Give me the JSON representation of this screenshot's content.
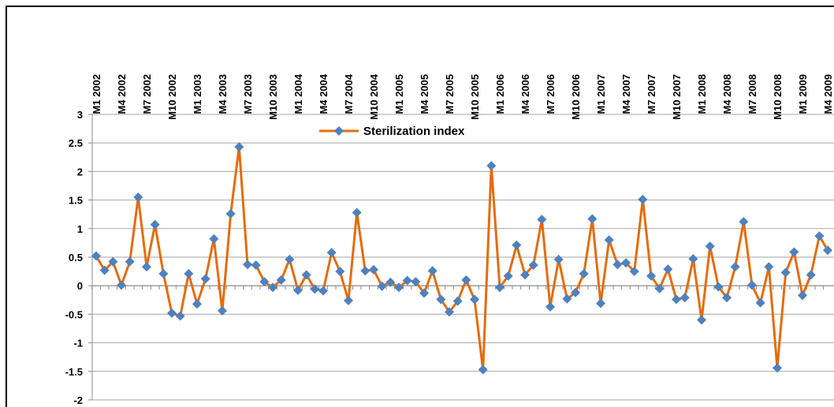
{
  "chart_data": {
    "type": "line",
    "categories": [
      "M1 2002",
      null,
      null,
      "M4 2002",
      null,
      null,
      "M7 2002",
      null,
      null,
      "M10 2002",
      null,
      null,
      "M1 2003",
      null,
      null,
      "M4 2003",
      null,
      null,
      "M7 2003",
      null,
      null,
      "M10 2003",
      null,
      null,
      "M1 2004",
      null,
      null,
      "M4 2004",
      null,
      null,
      "M7 2004",
      null,
      null,
      "M10 2004",
      null,
      null,
      "M1 2005",
      null,
      null,
      "M4 2005",
      null,
      null,
      "M7 2005",
      null,
      null,
      "M10 2005",
      null,
      null,
      "M1 2006",
      null,
      null,
      "M4 2006",
      null,
      null,
      "M7 2006",
      null,
      null,
      "M10 2006",
      null,
      null,
      "M1 2007",
      null,
      null,
      "M4 2007",
      null,
      null,
      "M7 2007",
      null,
      null,
      "M10 2007",
      null,
      null,
      "M1 2008",
      null,
      null,
      "M4 2008",
      null,
      null,
      "M7 2008",
      null,
      null,
      "M10 2008",
      null,
      null,
      "M1 2009",
      null,
      null,
      "M4 2009"
    ],
    "series": [
      {
        "name": "Sterilization index",
        "color": "#e46c0a",
        "marker_color": "#4f81bd",
        "values": [
          0.52,
          0.27,
          0.42,
          0.01,
          0.42,
          1.55,
          0.33,
          1.07,
          0.21,
          -0.48,
          -0.53,
          0.21,
          -0.32,
          0.12,
          0.82,
          -0.44,
          1.26,
          2.43,
          0.37,
          0.36,
          0.07,
          -0.03,
          0.1,
          0.46,
          -0.08,
          0.19,
          -0.06,
          -0.09,
          0.58,
          0.25,
          -0.26,
          1.28,
          0.26,
          0.28,
          -0.01,
          0.06,
          -0.03,
          0.09,
          0.07,
          -0.13,
          0.26,
          -0.24,
          -0.46,
          -0.27,
          0.1,
          -0.24,
          -1.47,
          2.1,
          -0.03,
          0.17,
          0.71,
          0.19,
          0.36,
          1.16,
          -0.37,
          0.46,
          -0.23,
          -0.12,
          0.21,
          1.17,
          -0.31,
          0.8,
          0.37,
          0.4,
          0.25,
          1.51,
          0.17,
          -0.05,
          0.29,
          -0.24,
          -0.21,
          0.47,
          -0.6,
          0.69,
          -0.02,
          -0.21,
          0.33,
          1.12,
          0.01,
          -0.3,
          0.33,
          -1.44,
          0.23,
          0.59,
          -0.17,
          0.19,
          0.87,
          0.62
        ]
      }
    ],
    "ylim": [
      -2,
      3
    ],
    "yticks": [
      -2,
      -1.5,
      -1,
      -0.5,
      0,
      0.5,
      1,
      1.5,
      2,
      2.5,
      3
    ],
    "grid": true,
    "legend": "top"
  }
}
